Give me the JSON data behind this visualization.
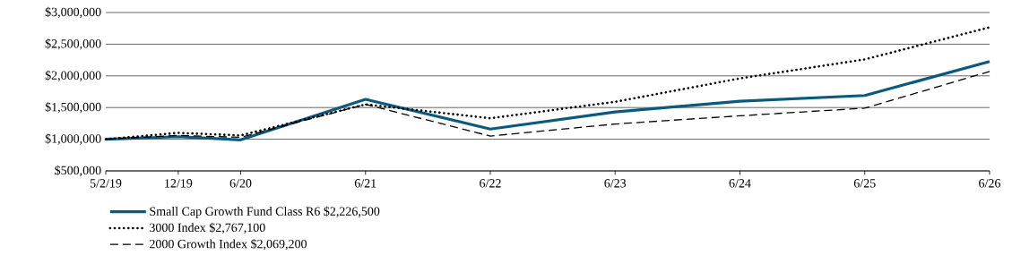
{
  "chart_data": {
    "type": "line",
    "x": [
      "2019-05-02",
      "2019-12",
      "2020-06",
      "2021-06",
      "2022-06",
      "2023-06",
      "2024-06",
      "2025-06",
      "2026-06"
    ],
    "series": [
      {
        "name": "Small Cap Growth Fund Class R6 $2,226,500",
        "color": "#0b5a7e",
        "line_style": "solid",
        "values": [
          1000000,
          1040000,
          990000,
          1630000,
          1160000,
          1430000,
          1600000,
          1690000,
          2226500
        ]
      },
      {
        "name": "3000 Index $2,767,100",
        "color": "#000000",
        "line_style": "dotted",
        "values": [
          1000000,
          1100000,
          1060000,
          1550000,
          1330000,
          1590000,
          1960000,
          2260000,
          2767100
        ]
      },
      {
        "name": "2000 Growth Index $2,069,200",
        "color": "#000000",
        "line_style": "dashed",
        "values": [
          1000000,
          1060000,
          1030000,
          1550000,
          1050000,
          1240000,
          1370000,
          1490000,
          2069200
        ]
      }
    ],
    "xlim": [
      "2019-05-02",
      "2026-06"
    ],
    "xticks": [
      {
        "value": "2019-05-02",
        "label": "5/2/19"
      },
      {
        "value": "2019-12",
        "label": "12/19"
      },
      {
        "value": "2020-06",
        "label": "6/20"
      },
      {
        "value": "2021-06",
        "label": "6/21"
      },
      {
        "value": "2022-06",
        "label": "6/22"
      },
      {
        "value": "2023-06",
        "label": "6/23"
      },
      {
        "value": "2024-06",
        "label": "6/24"
      },
      {
        "value": "2025-06",
        "label": "6/25"
      },
      {
        "value": "2026-06",
        "label": "6/26"
      }
    ],
    "ylim": [
      500000,
      3000000
    ],
    "yticks": [
      {
        "value": 500000,
        "label": "$500,000"
      },
      {
        "value": 1000000,
        "label": "$1,000,000"
      },
      {
        "value": 1500000,
        "label": "$1,500,000"
      },
      {
        "value": 2000000,
        "label": "$2,000,000"
      },
      {
        "value": 2500000,
        "label": "$2,500,000"
      },
      {
        "value": 3000000,
        "label": "$3,000,000"
      }
    ],
    "grid": "y",
    "legend": "bottom",
    "marker": "none"
  }
}
